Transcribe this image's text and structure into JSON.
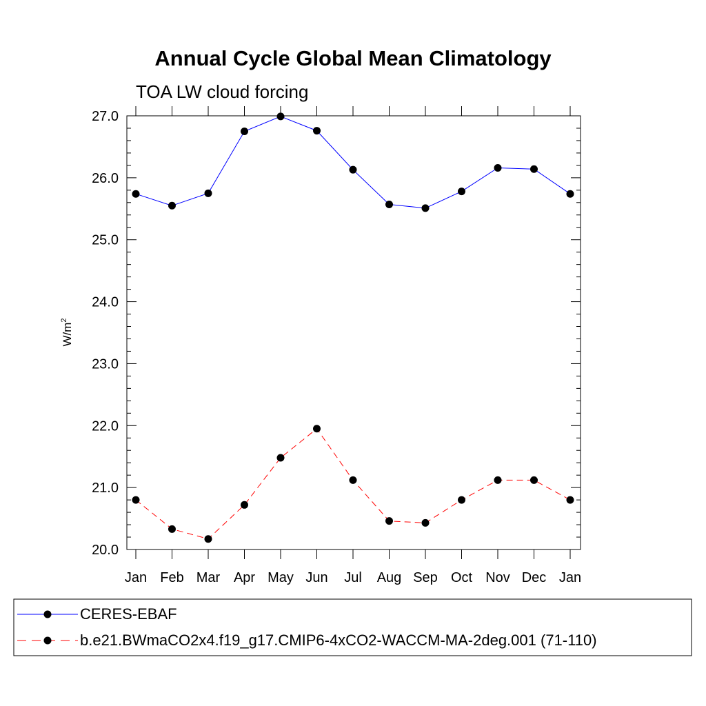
{
  "chart_data": {
    "type": "line",
    "title": "Annual Cycle Global Mean Climatology",
    "subtitle": "TOA LW cloud forcing",
    "ylabel": "W/m",
    "ylabel_sup": "2",
    "xlabel": "",
    "categories": [
      "Jan",
      "Feb",
      "Mar",
      "Apr",
      "May",
      "Jun",
      "Jul",
      "Aug",
      "Sep",
      "Oct",
      "Nov",
      "Dec",
      "Jan"
    ],
    "ylim": [
      20.0,
      27.0
    ],
    "yticks": [
      "20.0",
      "21.0",
      "22.0",
      "23.0",
      "24.0",
      "25.0",
      "26.0",
      "27.0"
    ],
    "series": [
      {
        "name": "CERES-EBAF",
        "color": "#0000ff",
        "dash": "solid",
        "marker": "filled-circle",
        "values": [
          25.74,
          25.55,
          25.75,
          26.75,
          26.99,
          26.76,
          26.13,
          25.57,
          25.51,
          25.78,
          26.16,
          26.14,
          25.74
        ]
      },
      {
        "name": "b.e21.BWmaCO2x4.f19_g17.CMIP6-4xCO2-WACCM-MA-2deg.001 (71-110)",
        "color": "#ff0000",
        "dash": "dashed",
        "marker": "filled-circle",
        "values": [
          20.8,
          20.33,
          20.17,
          20.72,
          21.48,
          21.95,
          21.12,
          20.46,
          20.43,
          20.8,
          21.12,
          21.12,
          20.8
        ]
      }
    ],
    "legend_position": "bottom"
  }
}
